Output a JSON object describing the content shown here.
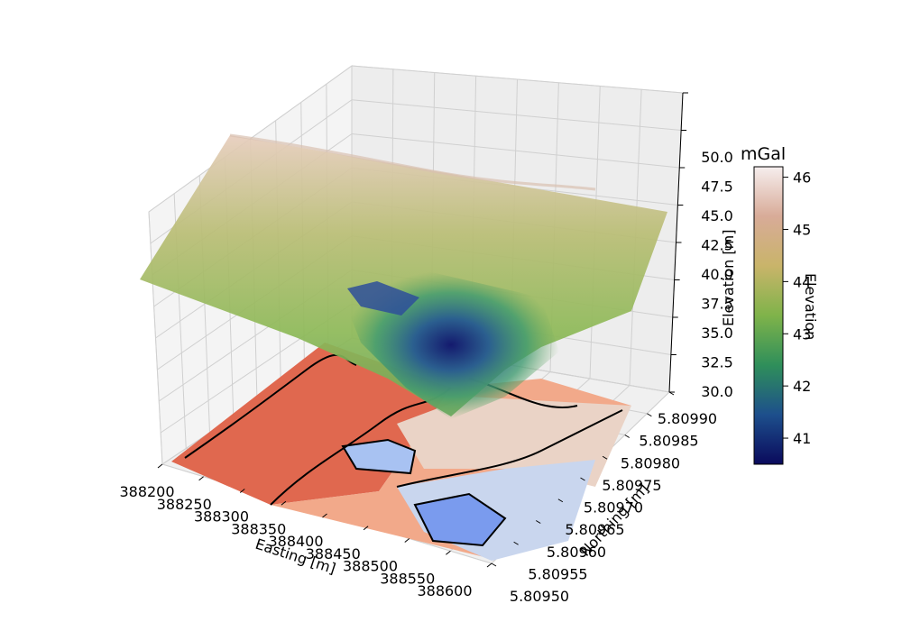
{
  "chart_data": {
    "type": "surface3d",
    "title": "",
    "x_axis": {
      "label": "Easting [m]",
      "ticks": [
        "388200",
        "388250",
        "388300",
        "388350",
        "388400",
        "388450",
        "388500",
        "388550",
        "388600"
      ],
      "range": [
        388200,
        388600
      ]
    },
    "y_axis": {
      "label": "Northing [m]",
      "ticks": [
        "5.80950",
        "5.80955",
        "5.80960",
        "5.80965",
        "5.80970",
        "5.80975",
        "5.80980",
        "5.80985",
        "5.80990"
      ],
      "range": [
        5.8095,
        5.8099
      ]
    },
    "z_axis": {
      "label": "Elevation [m]",
      "ticks": [
        "30.0",
        "32.5",
        "35.0",
        "37.5",
        "40.0",
        "42.5",
        "45.0",
        "47.5",
        "50.0"
      ],
      "range": [
        30.0,
        50.0
      ]
    },
    "colorbar": {
      "title": "mGal",
      "label": "Elevation",
      "ticks": [
        "41",
        "42",
        "43",
        "44",
        "45",
        "46"
      ],
      "range": [
        40.5,
        46.2
      ],
      "colormap": [
        "#0a0a5c",
        "#1d4f8c",
        "#2f8f5a",
        "#7fb34a",
        "#c9b46a",
        "#d8ab98",
        "#f6eeee"
      ]
    },
    "surface": {
      "z_range": [
        30.0,
        47.0
      ],
      "feature": "central depression",
      "colormap": "gist_earth"
    },
    "contour_floor": {
      "colormap": [
        "#e0684f",
        "#f2a98a",
        "#ead3c6",
        "#c9d6ee",
        "#a8c2f2",
        "#7a9bee"
      ],
      "lines": "black"
    },
    "grid": true
  }
}
